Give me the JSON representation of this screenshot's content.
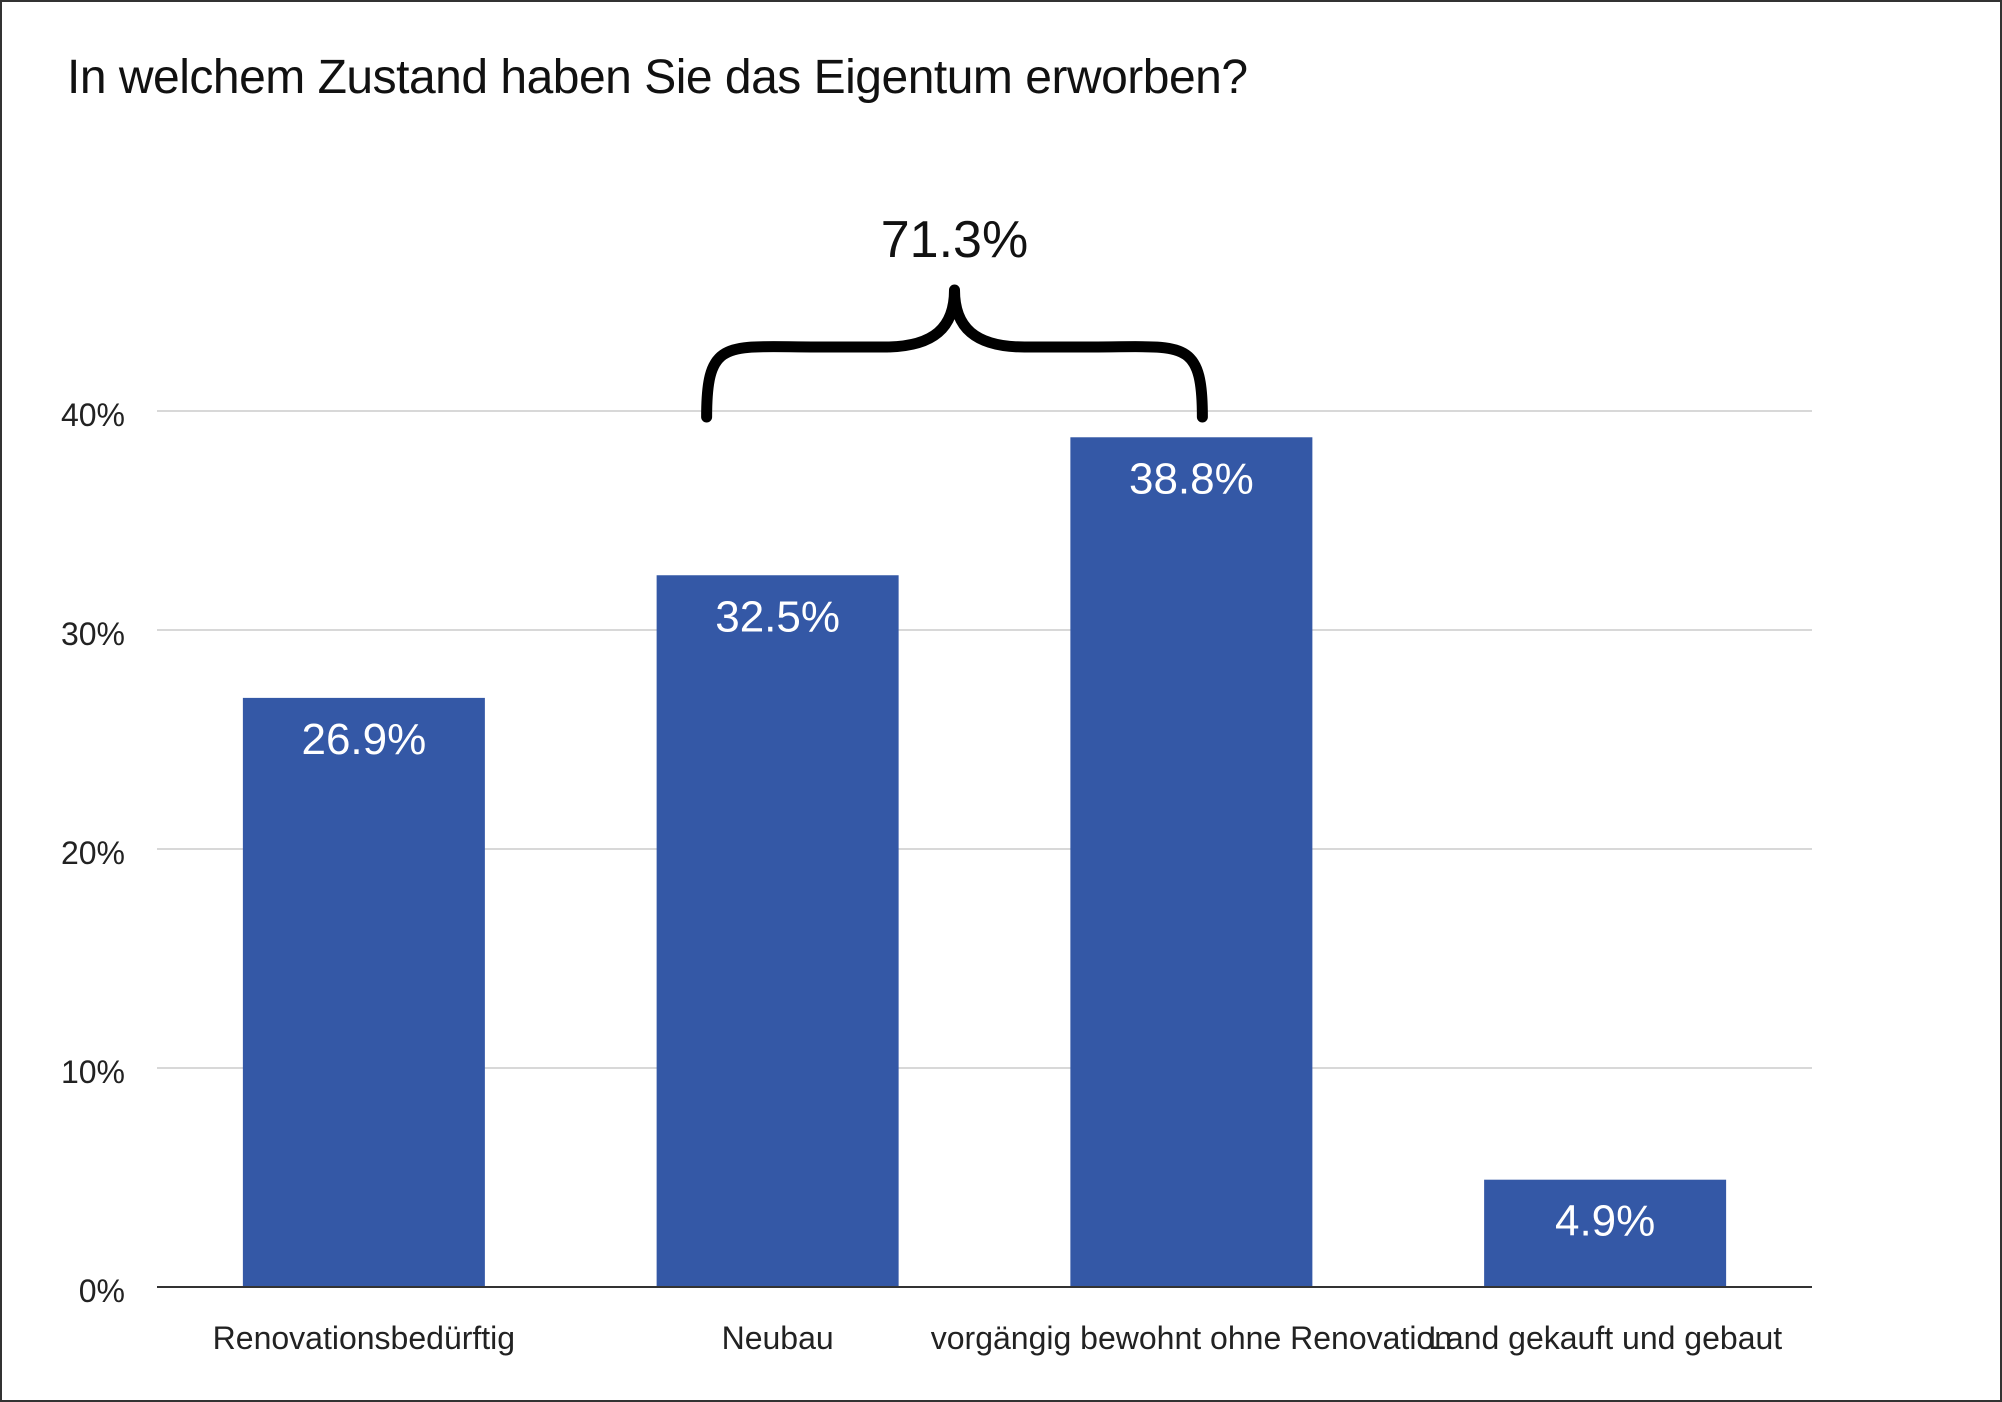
{
  "chart_data": {
    "type": "bar",
    "title": "In welchem Zustand haben Sie das Eigentum erworben?",
    "categories": [
      "Renovationsbedürftig",
      "Neubau",
      "vorgängig bewohnt ohne Renovation",
      "Land gekauft und gebaut"
    ],
    "values": [
      26.9,
      32.5,
      38.8,
      4.9
    ],
    "value_labels": [
      "26.9%",
      "32.5%",
      "38.8%",
      "4.9%"
    ],
    "xlabel": "",
    "ylabel": "",
    "ylim": [
      0,
      40
    ],
    "y_ticks": [
      0,
      10,
      20,
      30,
      40
    ],
    "y_tick_labels": [
      "0%",
      "10%",
      "20%",
      "30%",
      "40%"
    ],
    "grid": true,
    "bar_color": "#3458a6",
    "annotation": {
      "type": "brace",
      "from_category": 1,
      "to_category": 2,
      "label": "71.3%"
    }
  }
}
